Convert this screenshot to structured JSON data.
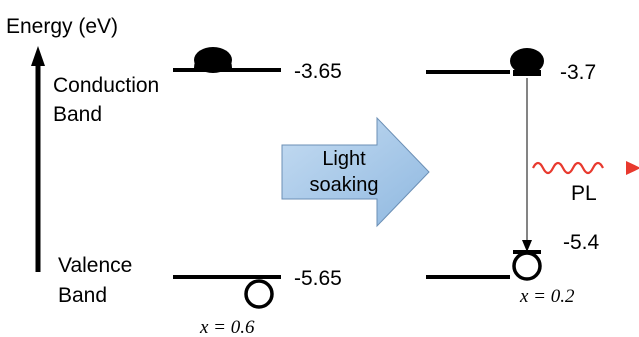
{
  "axis": {
    "label": "Energy (eV)"
  },
  "bands": {
    "conduction_label_line1": "Conduction",
    "conduction_label_line2": "Band",
    "valence_label_line1": "Valence",
    "valence_label_line2": "Band"
  },
  "left_state": {
    "conduction_energy": "-3.65",
    "valence_energy": "-5.65",
    "composition": "x = 0.6"
  },
  "right_state": {
    "conduction_energy": "-3.7",
    "valence_energy": "-5.4",
    "composition": "x = 0.2"
  },
  "process": {
    "label_line1": "Light",
    "label_line2": "soaking",
    "arrow_color": "#9dc3e6"
  },
  "emission": {
    "label": "PL",
    "color": "#e8392e"
  }
}
